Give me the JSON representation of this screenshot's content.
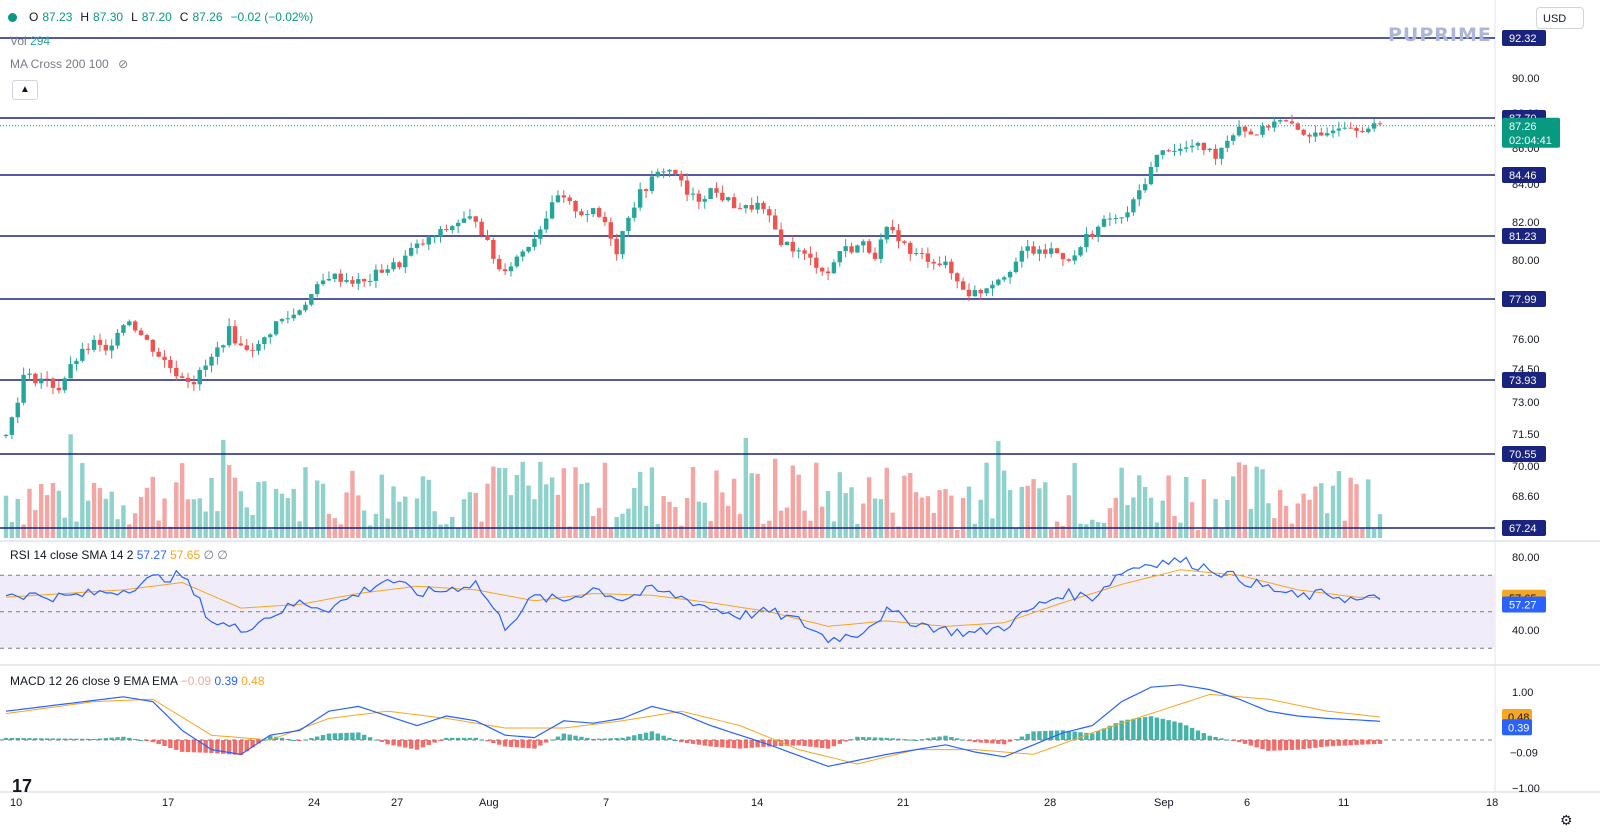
{
  "header": {
    "open_label": "O",
    "open": "87.23",
    "high_label": "H",
    "high": "87.30",
    "low_label": "L",
    "low": "87.20",
    "close_label": "C",
    "close": "87.26",
    "change": "−0.02 (−0.02%)"
  },
  "legend": {
    "vol_label": "Vol",
    "vol_value": "294",
    "ma_label": "MA Cross 200 100",
    "rsi_label": "RSI 14 close SMA 14 2",
    "rsi_value": "57.27",
    "rsi_sma": "57.65",
    "rsi_extra1": "∅",
    "rsi_extra2": "∅",
    "macd_label": "MACD 12 26 close 9 EMA EMA",
    "macd_hist": "−0.09",
    "macd_line": "0.39",
    "macd_signal": "0.48"
  },
  "currency_button": "USD",
  "brand": "PUPRIME",
  "tv_logo": "17",
  "colors": {
    "up": "#26a69a",
    "down": "#ef5350",
    "vol_up": "#8fd1cb",
    "vol_down": "#f4a6a4",
    "hline": "#1a237e",
    "rsi_line": "#2962ff",
    "rsi_sma": "#f5a623",
    "macd_line": "#2962ff",
    "signal_line": "#f5a623",
    "current_price_bg": "#089981"
  },
  "icons": {
    "eye_off": "eye-off-icon",
    "chevron_up": "chevron-up-icon",
    "gear": "gear-icon",
    "dot": "status-dot-icon"
  },
  "chart_data": {
    "type": "candlestick",
    "price_axis_ticks": [
      "90.00",
      "88.00",
      "86.00",
      "84.00",
      "82.00",
      "80.00",
      "76.00",
      "74.50",
      "73.00",
      "71.50",
      "70.00",
      "68.60",
      "67.24"
    ],
    "price_axis_visible": [
      "92.32",
      "90.00",
      "87.70",
      "87.26",
      "02:04:41",
      "86.00",
      "84.46",
      "84.00",
      "82.00",
      "81.23",
      "80.00",
      "77.99",
      "76.00",
      "74.50",
      "73.93",
      "73.00",
      "71.50",
      "70.55",
      "70.00",
      "68.60",
      "67.24"
    ],
    "horizontal_levels": [
      92.32,
      87.7,
      84.46,
      81.23,
      77.99,
      73.93,
      70.55,
      67.24
    ],
    "current_price": 87.26,
    "countdown": "02:04:41",
    "x_ticks": [
      "10",
      "17",
      "24",
      "27",
      "Aug",
      "7",
      "14",
      "21",
      "28",
      "Sep",
      "6",
      "11",
      "18"
    ],
    "close_path": [
      [
        0,
        71.4
      ],
      [
        3,
        74.1
      ],
      [
        6,
        74.0
      ],
      [
        9,
        73.6
      ],
      [
        12,
        75.0
      ],
      [
        15,
        75.8
      ],
      [
        17,
        75.3
      ],
      [
        19,
        76.5
      ],
      [
        21,
        77.0
      ],
      [
        23,
        76.2
      ],
      [
        26,
        75.2
      ],
      [
        29,
        74.3
      ],
      [
        32,
        73.9
      ],
      [
        35,
        75.0
      ],
      [
        38,
        76.4
      ],
      [
        40,
        75.6
      ],
      [
        43,
        75.6
      ],
      [
        46,
        76.8
      ],
      [
        49,
        77.2
      ],
      [
        52,
        78.2
      ],
      [
        55,
        79.2
      ],
      [
        58,
        79.0
      ],
      [
        61,
        78.8
      ],
      [
        64,
        79.5
      ],
      [
        67,
        79.8
      ],
      [
        69,
        80.5
      ],
      [
        72,
        81.0
      ],
      [
        74,
        81.4
      ],
      [
        77,
        82.0
      ],
      [
        80,
        82.2
      ],
      [
        82,
        80.8
      ],
      [
        84,
        79.5
      ],
      [
        86,
        79.8
      ],
      [
        88,
        80.5
      ],
      [
        90,
        81.2
      ],
      [
        92,
        82.3
      ],
      [
        94,
        83.3
      ],
      [
        96,
        82.9
      ],
      [
        98,
        82.5
      ],
      [
        100,
        82.5
      ],
      [
        102,
        82.0
      ],
      [
        104,
        80.5
      ],
      [
        106,
        82.4
      ],
      [
        108,
        83.5
      ],
      [
        110,
        84.2
      ],
      [
        112,
        84.8
      ],
      [
        114,
        84.6
      ],
      [
        116,
        83.4
      ],
      [
        118,
        83.2
      ],
      [
        120,
        83.7
      ],
      [
        122,
        83.3
      ],
      [
        124,
        82.9
      ],
      [
        126,
        82.7
      ],
      [
        128,
        82.9
      ],
      [
        130,
        82.1
      ],
      [
        132,
        81.0
      ],
      [
        135,
        80.4
      ],
      [
        138,
        79.8
      ],
      [
        140,
        79.3
      ],
      [
        142,
        80.5
      ],
      [
        144,
        80.6
      ],
      [
        146,
        80.8
      ],
      [
        148,
        80.3
      ],
      [
        150,
        81.5
      ],
      [
        152,
        81.2
      ],
      [
        154,
        80.3
      ],
      [
        156,
        80.2
      ],
      [
        158,
        80.0
      ],
      [
        160,
        79.7
      ],
      [
        162,
        78.9
      ],
      [
        164,
        78.3
      ],
      [
        166,
        78.4
      ],
      [
        168,
        78.9
      ],
      [
        170,
        79.3
      ],
      [
        172,
        79.9
      ],
      [
        174,
        80.6
      ],
      [
        176,
        80.3
      ],
      [
        178,
        80.5
      ],
      [
        180,
        80.2
      ],
      [
        182,
        80.1
      ],
      [
        184,
        81.2
      ],
      [
        186,
        81.7
      ],
      [
        188,
        82.2
      ],
      [
        190,
        82.1
      ],
      [
        192,
        83.0
      ],
      [
        194,
        84.2
      ],
      [
        196,
        85.5
      ],
      [
        198,
        86.0
      ],
      [
        200,
        85.9
      ],
      [
        202,
        86.1
      ],
      [
        204,
        86.0
      ],
      [
        206,
        85.6
      ],
      [
        208,
        86.5
      ],
      [
        210,
        87.3
      ],
      [
        212,
        86.8
      ],
      [
        214,
        87.0
      ],
      [
        216,
        87.6
      ],
      [
        218,
        87.4
      ],
      [
        220,
        87.0
      ],
      [
        222,
        86.8
      ],
      [
        224,
        86.5
      ],
      [
        226,
        87.2
      ],
      [
        228,
        87.4
      ],
      [
        230,
        87.2
      ],
      [
        232,
        87.1
      ],
      [
        234,
        87.26
      ]
    ],
    "volume_label": "Vol 294",
    "rsi": {
      "type": "line",
      "levels": [
        70,
        50,
        30
      ],
      "ticks": [
        "80.00",
        "40.00"
      ],
      "current": 57.27,
      "sma": 57.65,
      "path": [
        [
          0,
          60
        ],
        [
          10,
          58
        ],
        [
          20,
          62
        ],
        [
          25,
          68
        ],
        [
          30,
          70
        ],
        [
          35,
          45
        ],
        [
          40,
          40
        ],
        [
          45,
          48
        ],
        [
          50,
          55
        ],
        [
          55,
          52
        ],
        [
          60,
          60
        ],
        [
          65,
          68
        ],
        [
          70,
          60
        ],
        [
          75,
          62
        ],
        [
          80,
          66
        ],
        [
          85,
          42
        ],
        [
          90,
          58
        ],
        [
          95,
          56
        ],
        [
          100,
          63
        ],
        [
          105,
          57
        ],
        [
          110,
          62
        ],
        [
          115,
          58
        ],
        [
          120,
          52
        ],
        [
          125,
          48
        ],
        [
          130,
          50
        ],
        [
          135,
          45
        ],
        [
          140,
          35
        ],
        [
          145,
          38
        ],
        [
          150,
          50
        ],
        [
          155,
          44
        ],
        [
          160,
          40
        ],
        [
          165,
          38
        ],
        [
          170,
          42
        ],
        [
          175,
          52
        ],
        [
          180,
          60
        ],
        [
          185,
          58
        ],
        [
          190,
          72
        ],
        [
          195,
          77
        ],
        [
          200,
          78
        ],
        [
          205,
          74
        ],
        [
          210,
          68
        ],
        [
          215,
          63
        ],
        [
          220,
          58
        ],
        [
          225,
          60
        ],
        [
          230,
          56
        ],
        [
          234,
          57.27
        ]
      ],
      "sma_path": [
        [
          0,
          58
        ],
        [
          20,
          62
        ],
        [
          30,
          66
        ],
        [
          40,
          52
        ],
        [
          50,
          54
        ],
        [
          60,
          60
        ],
        [
          70,
          64
        ],
        [
          80,
          62
        ],
        [
          90,
          56
        ],
        [
          100,
          60
        ],
        [
          110,
          59
        ],
        [
          120,
          55
        ],
        [
          130,
          50
        ],
        [
          140,
          42
        ],
        [
          150,
          45
        ],
        [
          160,
          42
        ],
        [
          170,
          44
        ],
        [
          180,
          55
        ],
        [
          190,
          65
        ],
        [
          200,
          73
        ],
        [
          210,
          70
        ],
        [
          220,
          62
        ],
        [
          230,
          58
        ],
        [
          234,
          57.65
        ]
      ]
    },
    "macd": {
      "type": "line",
      "ticks": [
        "1.00",
        "0.48",
        "0.39",
        "-0.09",
        "-1.00"
      ],
      "macd_current": 0.39,
      "signal_current": 0.48,
      "hist_current": -0.09,
      "macd_path": [
        [
          0,
          0.6
        ],
        [
          10,
          0.75
        ],
        [
          20,
          0.9
        ],
        [
          25,
          0.8
        ],
        [
          30,
          0.2
        ],
        [
          35,
          -0.2
        ],
        [
          40,
          -0.3
        ],
        [
          45,
          0.1
        ],
        [
          50,
          0.2
        ],
        [
          55,
          0.6
        ],
        [
          60,
          0.7
        ],
        [
          65,
          0.5
        ],
        [
          70,
          0.3
        ],
        [
          75,
          0.5
        ],
        [
          80,
          0.4
        ],
        [
          85,
          0.1
        ],
        [
          90,
          0.05
        ],
        [
          95,
          0.4
        ],
        [
          100,
          0.35
        ],
        [
          105,
          0.45
        ],
        [
          110,
          0.7
        ],
        [
          115,
          0.55
        ],
        [
          120,
          0.3
        ],
        [
          125,
          0.1
        ],
        [
          130,
          -0.1
        ],
        [
          140,
          -0.55
        ],
        [
          150,
          -0.3
        ],
        [
          160,
          -0.1
        ],
        [
          165,
          -0.25
        ],
        [
          170,
          -0.35
        ],
        [
          175,
          -0.1
        ],
        [
          180,
          0.15
        ],
        [
          185,
          0.3
        ],
        [
          190,
          0.8
        ],
        [
          195,
          1.1
        ],
        [
          200,
          1.15
        ],
        [
          205,
          1.05
        ],
        [
          210,
          0.85
        ],
        [
          215,
          0.6
        ],
        [
          220,
          0.5
        ],
        [
          225,
          0.45
        ],
        [
          230,
          0.42
        ],
        [
          234,
          0.39
        ]
      ],
      "signal_path": [
        [
          0,
          0.55
        ],
        [
          15,
          0.8
        ],
        [
          25,
          0.85
        ],
        [
          35,
          0.1
        ],
        [
          45,
          0.0
        ],
        [
          55,
          0.45
        ],
        [
          65,
          0.6
        ],
        [
          75,
          0.45
        ],
        [
          85,
          0.25
        ],
        [
          95,
          0.25
        ],
        [
          105,
          0.4
        ],
        [
          115,
          0.6
        ],
        [
          125,
          0.3
        ],
        [
          135,
          -0.2
        ],
        [
          145,
          -0.5
        ],
        [
          155,
          -0.2
        ],
        [
          165,
          -0.2
        ],
        [
          175,
          -0.3
        ],
        [
          185,
          0.15
        ],
        [
          195,
          0.55
        ],
        [
          205,
          0.95
        ],
        [
          215,
          0.85
        ],
        [
          225,
          0.6
        ],
        [
          234,
          0.48
        ]
      ]
    }
  }
}
